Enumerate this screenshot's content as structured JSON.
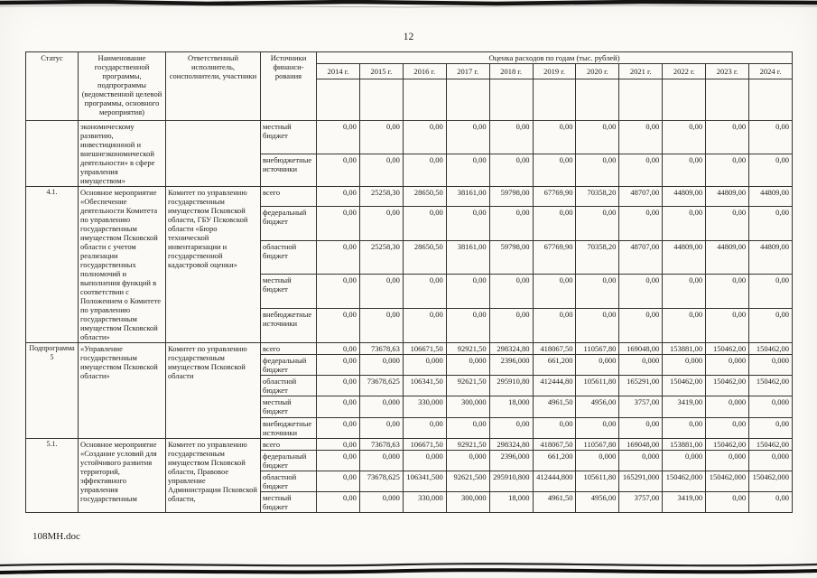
{
  "page": {
    "number": "12",
    "footer_filename": "108МН.doc"
  },
  "colors": {
    "page_background": "#fbfaf6",
    "ink": "#1c1c1c",
    "table_border": "#343434"
  },
  "table": {
    "header": {
      "status": "Статус",
      "program": "Наименование государственной программы, подпрограммы (ведомственной целевой программы, основного мероприятия)",
      "executor": "Ответственный исполнитель, соисполнители, участники",
      "sources": "Источники финанси-рования",
      "estimate": "Оценка расходов по годам (тыс. рублей)",
      "years": [
        "2014 г.",
        "2015 г.",
        "2016 г.",
        "2017 г.",
        "2018 г.",
        "2019 г.",
        "2020 г.",
        "2021 г.",
        "2022 г.",
        "2023 г.",
        "2024 г."
      ]
    },
    "groups": [
      {
        "status": "",
        "program": "экономическому развитию, инвестиционной и внешнеэкономической деятельности» в сфере управления имуществом»",
        "executor": "",
        "rows": [
          {
            "source": "местный бюджет",
            "values": [
              "0,00",
              "0,00",
              "0,00",
              "0,00",
              "0,00",
              "0,00",
              "0,00",
              "0,00",
              "0,00",
              "0,00",
              "0,00"
            ]
          },
          {
            "source": "внебюджетные источники",
            "values": [
              "0,00",
              "0,00",
              "0,00",
              "0,00",
              "0,00",
              "0,00",
              "0,00",
              "0,00",
              "0,00",
              "0,00",
              "0,00"
            ]
          }
        ]
      },
      {
        "status": "4.1.",
        "program": "Основное мероприятие «Обеспечение деятельности Комитета по управлению государственным имуществом Псковской области с учетом реализации государственных полномочий и выполнения функций в соответствии с Положением о Комитете по управлению государственным имуществом Псковской области»",
        "executor": "Комитет по управлению государственным имуществом Псковской области, ГБУ Псковской области «Бюро технической инвентаризации и государственной кадастровой оценки»",
        "rows": [
          {
            "source": "всего",
            "values": [
              "0,00",
              "25258,30",
              "28650,50",
              "38161,00",
              "59798,00",
              "67769,90",
              "70358,20",
              "48707,00",
              "44809,00",
              "44809,00",
              "44809,00"
            ]
          },
          {
            "source": "федеральный бюджет",
            "values": [
              "0,00",
              "0,00",
              "0,00",
              "0,00",
              "0,00",
              "0,00",
              "0,00",
              "0,00",
              "0,00",
              "0,00",
              "0,00"
            ]
          },
          {
            "source": "областной бюджет",
            "values": [
              "0,00",
              "25258,30",
              "28650,50",
              "38161,00",
              "59798,00",
              "67769,90",
              "70358,20",
              "48707,00",
              "44809,00",
              "44809,00",
              "44809,00"
            ]
          },
          {
            "source": "местный бюджет",
            "values": [
              "0,00",
              "0,00",
              "0,00",
              "0,00",
              "0,00",
              "0,00",
              "0,00",
              "0,00",
              "0,00",
              "0,00",
              "0,00"
            ]
          },
          {
            "source": "внебюджетные источники",
            "values": [
              "0,00",
              "0,00",
              "0,00",
              "0,00",
              "0,00",
              "0,00",
              "0,00",
              "0,00",
              "0,00",
              "0,00",
              "0,00"
            ]
          }
        ]
      },
      {
        "status": "Подпрограмма 5",
        "program": "«Управление государственным имуществом Псковской области»",
        "executor": "Комитет по управлению государственным имуществом Псковской области",
        "rows": [
          {
            "source": "всего",
            "values": [
              "0,00",
              "73678,63",
              "106671,50",
              "92921,50",
              "298324,80",
              "418067,50",
              "110567,80",
              "169048,00",
              "153881,00",
              "150462,00",
              "150462,00"
            ]
          },
          {
            "source": "федеральный бюджет",
            "values": [
              "0,00",
              "0,000",
              "0,000",
              "0,000",
              "2396,000",
              "661,200",
              "0,000",
              "0,000",
              "0,000",
              "0,000",
              "0,000"
            ]
          },
          {
            "source": "областной бюджет",
            "values": [
              "0,00",
              "73678,625",
              "106341,50",
              "92621,50",
              "295910,80",
              "412444,80",
              "105611,80",
              "165291,00",
              "150462,00",
              "150462,00",
              "150462,00"
            ]
          },
          {
            "source": "местный бюджет",
            "values": [
              "0,00",
              "0,000",
              "330,000",
              "300,000",
              "18,000",
              "4961,50",
              "4956,00",
              "3757,00",
              "3419,00",
              "0,000",
              "0,000"
            ]
          },
          {
            "source": "внебюджетные источники",
            "values": [
              "0,00",
              "0,00",
              "0,00",
              "0,00",
              "0,00",
              "0,00",
              "0,00",
              "0,00",
              "0,00",
              "0,00",
              "0,00"
            ]
          }
        ]
      },
      {
        "status": "5.1.",
        "program": "Основное мероприятие «Создание условий для устойчивого развития территорий, эффективного управления государственным",
        "executor": "Комитет по управлению государственным имуществом Псковской области, Правовое управление Администрации Псковской области,",
        "rows": [
          {
            "source": "всего",
            "values": [
              "0,00",
              "73678,63",
              "106671,50",
              "92921,50",
              "298324,80",
              "418067,50",
              "110567,80",
              "169048,00",
              "153881,00",
              "150462,00",
              "150462,00"
            ]
          },
          {
            "source": "федеральный бюджет",
            "values": [
              "0,00",
              "0,000",
              "0,000",
              "0,000",
              "2396,000",
              "661,200",
              "0,000",
              "0,000",
              "0,000",
              "0,000",
              "0,000"
            ]
          },
          {
            "source": "областной бюджет",
            "values": [
              "0,00",
              "73678,625",
              "106341,500",
              "92621,500",
              "295910,800",
              "412444,800",
              "105611,80",
              "165291,000",
              "150462,000",
              "150462,000",
              "150462,000"
            ]
          },
          {
            "source": "местный бюджет",
            "values": [
              "0,00",
              "0,000",
              "330,000",
              "300,000",
              "18,000",
              "4961,50",
              "4956,00",
              "3757,00",
              "3419,00",
              "0,00",
              "0,00"
            ]
          }
        ]
      }
    ]
  }
}
